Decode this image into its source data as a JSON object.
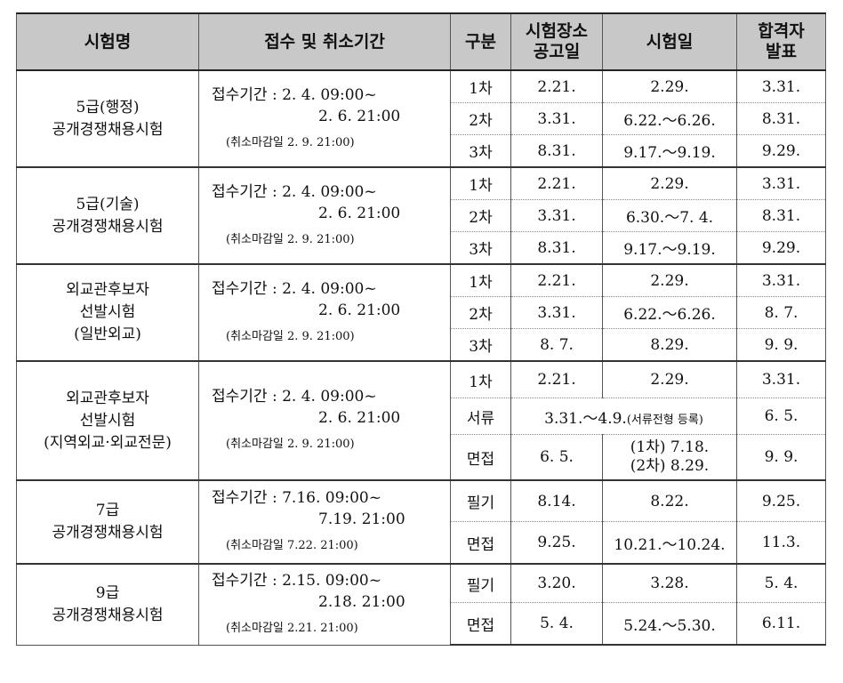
{
  "headers": {
    "name": "시험명",
    "period": "접수 및 취소기간",
    "stage": "구분",
    "venue_1": "시험장소",
    "venue_2": "공고일",
    "exam_date": "시험일",
    "result_1": "합격자",
    "result_2": "발표"
  },
  "groups": [
    {
      "name_1": "5급(행정)",
      "name_2": "공개경쟁채용시험",
      "reg_1": "접수기간 : 2. 4. 09:00~",
      "reg_2": "2. 6. 21:00",
      "cancel": "(취소마감일 2. 9. 21:00)",
      "rows": [
        {
          "stage": "1차",
          "venue": "2.21.",
          "exam": "2.29.",
          "result": "3.31."
        },
        {
          "stage": "2차",
          "venue": "3.31.",
          "exam": "6.22.～6.26.",
          "result": "8.31."
        },
        {
          "stage": "3차",
          "venue": "8.31.",
          "exam": "9.17.～9.19.",
          "result": "9.29."
        }
      ]
    },
    {
      "name_1": "5급(기술)",
      "name_2": "공개경쟁채용시험",
      "reg_1": "접수기간 : 2. 4. 09:00~",
      "reg_2": "2. 6. 21:00",
      "cancel": "(취소마감일 2. 9. 21:00)",
      "rows": [
        {
          "stage": "1차",
          "venue": "2.21.",
          "exam": "2.29.",
          "result": "3.31."
        },
        {
          "stage": "2차",
          "venue": "3.31.",
          "exam": "6.30.～7. 4.",
          "result": "8.31."
        },
        {
          "stage": "3차",
          "venue": "8.31.",
          "exam": "9.17.～9.19.",
          "result": "9.29."
        }
      ]
    },
    {
      "name_1": "외교관후보자",
      "name_2": "선발시험",
      "name_3": "(일반외교)",
      "reg_1": "접수기간 : 2. 4. 09:00~",
      "reg_2": "2. 6. 21:00",
      "cancel": "(취소마감일 2. 9. 21:00)",
      "rows": [
        {
          "stage": "1차",
          "venue": "2.21.",
          "exam": "2.29.",
          "result": "3.31."
        },
        {
          "stage": "2차",
          "venue": "3.31.",
          "exam": "6.22.～6.26.",
          "result": "8. 7."
        },
        {
          "stage": "3차",
          "venue": "8. 7.",
          "exam": "8.29.",
          "result": "9. 9."
        }
      ]
    },
    {
      "name_1": "외교관후보자",
      "name_2": "선발시험",
      "name_3": "(지역외교·외교전문)",
      "reg_1": "접수기간 : 2. 4. 09:00~",
      "reg_2": "2. 6. 21:00",
      "cancel": "(취소마감일 2. 9. 21:00)",
      "row1": {
        "stage": "1차",
        "venue": "2.21.",
        "exam": "2.29.",
        "result": "3.31."
      },
      "row2": {
        "stage": "서류",
        "venue_main": "3.31.～4.9.",
        "venue_note": "(서류전형 등록)",
        "result": "6. 5."
      },
      "row3": {
        "stage": "면접",
        "venue": "6. 5.",
        "exam_1": "(1차) 7.18.",
        "exam_2": "(2차) 8.29.",
        "result": "9. 9."
      }
    },
    {
      "name_1": "7급",
      "name_2": "공개경쟁채용시험",
      "reg_1": "접수기간 : 7.16. 09:00~",
      "reg_2": "7.19. 21:00",
      "cancel": "(취소마감일 7.22. 21:00)",
      "rows": [
        {
          "stage": "필기",
          "venue": "8.14.",
          "exam": "8.22.",
          "result": "9.25."
        },
        {
          "stage": "면접",
          "venue": "9.25.",
          "exam": "10.21.～10.24.",
          "result": "11.3."
        }
      ]
    },
    {
      "name_1": "9급",
      "name_2": "공개경쟁채용시험",
      "reg_1": "접수기간 : 2.15. 09:00~",
      "reg_2": "2.18. 21:00",
      "cancel": "(취소마감일 2.21. 21:00)",
      "rows": [
        {
          "stage": "필기",
          "venue": "3.20.",
          "exam": "3.28.",
          "result": "5. 4."
        },
        {
          "stage": "면접",
          "venue": "5. 4.",
          "exam": "5.24.～5.30.",
          "result": "6.11."
        }
      ]
    }
  ]
}
